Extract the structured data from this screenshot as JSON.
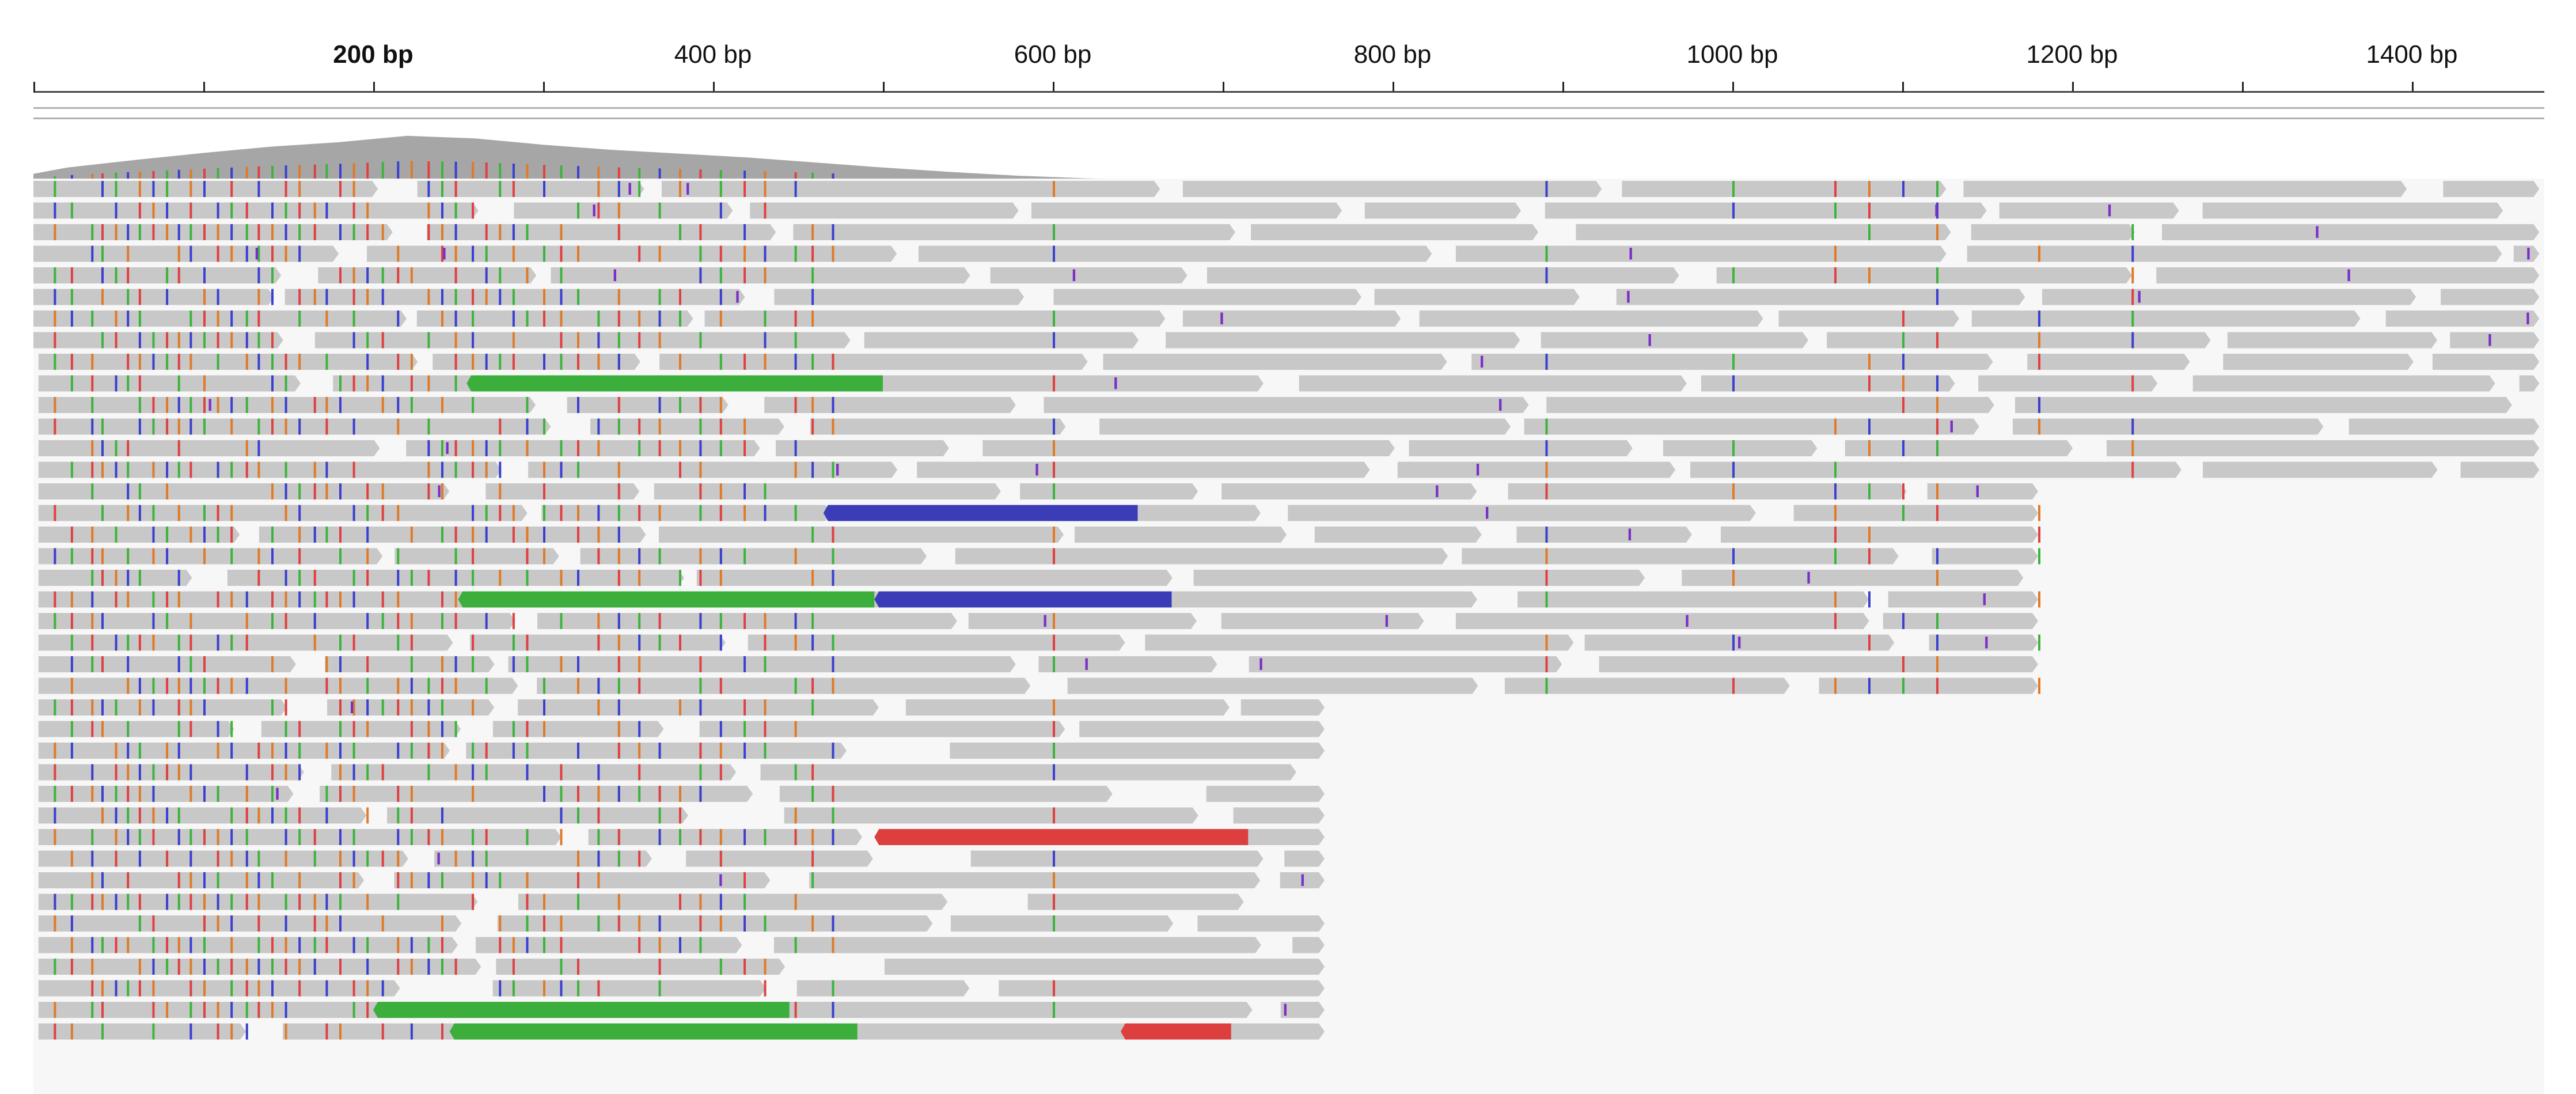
{
  "ruler": {
    "ticks": [
      {
        "bp": 200,
        "label": "200 bp",
        "bold": true
      },
      {
        "bp": 400,
        "label": "400 bp",
        "bold": false
      },
      {
        "bp": 600,
        "label": "600 bp",
        "bold": false
      },
      {
        "bp": 800,
        "label": "800 bp",
        "bold": false
      },
      {
        "bp": 1000,
        "label": "1000 bp",
        "bold": false
      },
      {
        "bp": 1200,
        "label": "1200 bp",
        "bold": false
      },
      {
        "bp": 1400,
        "label": "1400 bp",
        "bold": false
      }
    ],
    "minor_ticks_bp": [
      0,
      100,
      300,
      500,
      700,
      900,
      1100,
      1300
    ],
    "range_bp": [
      0,
      1475
    ]
  },
  "coverage": {
    "color": "#a6a6a6",
    "profile": [
      [
        0,
        0.12
      ],
      [
        20,
        0.22
      ],
      [
        60,
        0.34
      ],
      [
        100,
        0.45
      ],
      [
        140,
        0.55
      ],
      [
        180,
        0.62
      ],
      [
        220,
        0.72
      ],
      [
        260,
        0.68
      ],
      [
        300,
        0.58
      ],
      [
        340,
        0.5
      ],
      [
        380,
        0.44
      ],
      [
        420,
        0.38
      ],
      [
        460,
        0.3
      ],
      [
        500,
        0.22
      ],
      [
        540,
        0.15
      ],
      [
        580,
        0.09
      ],
      [
        620,
        0.05
      ],
      [
        660,
        0.03
      ],
      [
        700,
        0.02
      ],
      [
        760,
        0.02
      ],
      [
        900,
        0.03
      ],
      [
        1000,
        0.04
      ],
      [
        1200,
        0.03
      ],
      [
        1475,
        0.02
      ]
    ]
  },
  "colors": {
    "read": "#c8c8c8",
    "A": "#3cb43c",
    "C": "#3a3fd0",
    "G": "#e07a28",
    "T": "#e04040",
    "insertion": "#7a2fc8",
    "softclip_green": "#3cae3c",
    "softclip_blue": "#3b3db8",
    "softclip_red": "#dd3f3f",
    "background": "#f7f7f7"
  },
  "reads": {
    "row_count": 40,
    "snp_columns_bp": [
      12,
      22,
      34,
      40,
      48,
      55,
      62,
      70,
      78,
      85,
      92,
      100,
      108,
      116,
      125,
      132,
      140,
      148,
      156,
      165,
      172,
      180,
      188,
      196,
      205,
      214,
      222,
      232,
      240,
      248,
      258,
      266,
      274,
      282,
      290,
      300,
      310,
      320,
      332,
      344,
      356,
      368,
      380,
      392,
      404,
      418,
      430,
      448,
      458,
      470,
      600,
      890,
      1000,
      1060,
      1080,
      1100,
      1120,
      1180,
      1235
    ],
    "long_clips": [
      {
        "row": 9,
        "start": 255,
        "end": 500,
        "color": "softclip_green"
      },
      {
        "row": 15,
        "start": 465,
        "end": 650,
        "color": "softclip_blue"
      },
      {
        "row": 19,
        "start": 250,
        "end": 495,
        "color": "softclip_green"
      },
      {
        "row": 19,
        "start": 495,
        "end": 670,
        "color": "softclip_blue"
      },
      {
        "row": 30,
        "start": 495,
        "end": 715,
        "color": "softclip_red"
      },
      {
        "row": 38,
        "start": 200,
        "end": 445,
        "color": "softclip_green"
      },
      {
        "row": 39,
        "start": 245,
        "end": 485,
        "color": "softclip_green"
      },
      {
        "row": 39,
        "start": 640,
        "end": 705,
        "color": "softclip_red"
      }
    ]
  }
}
